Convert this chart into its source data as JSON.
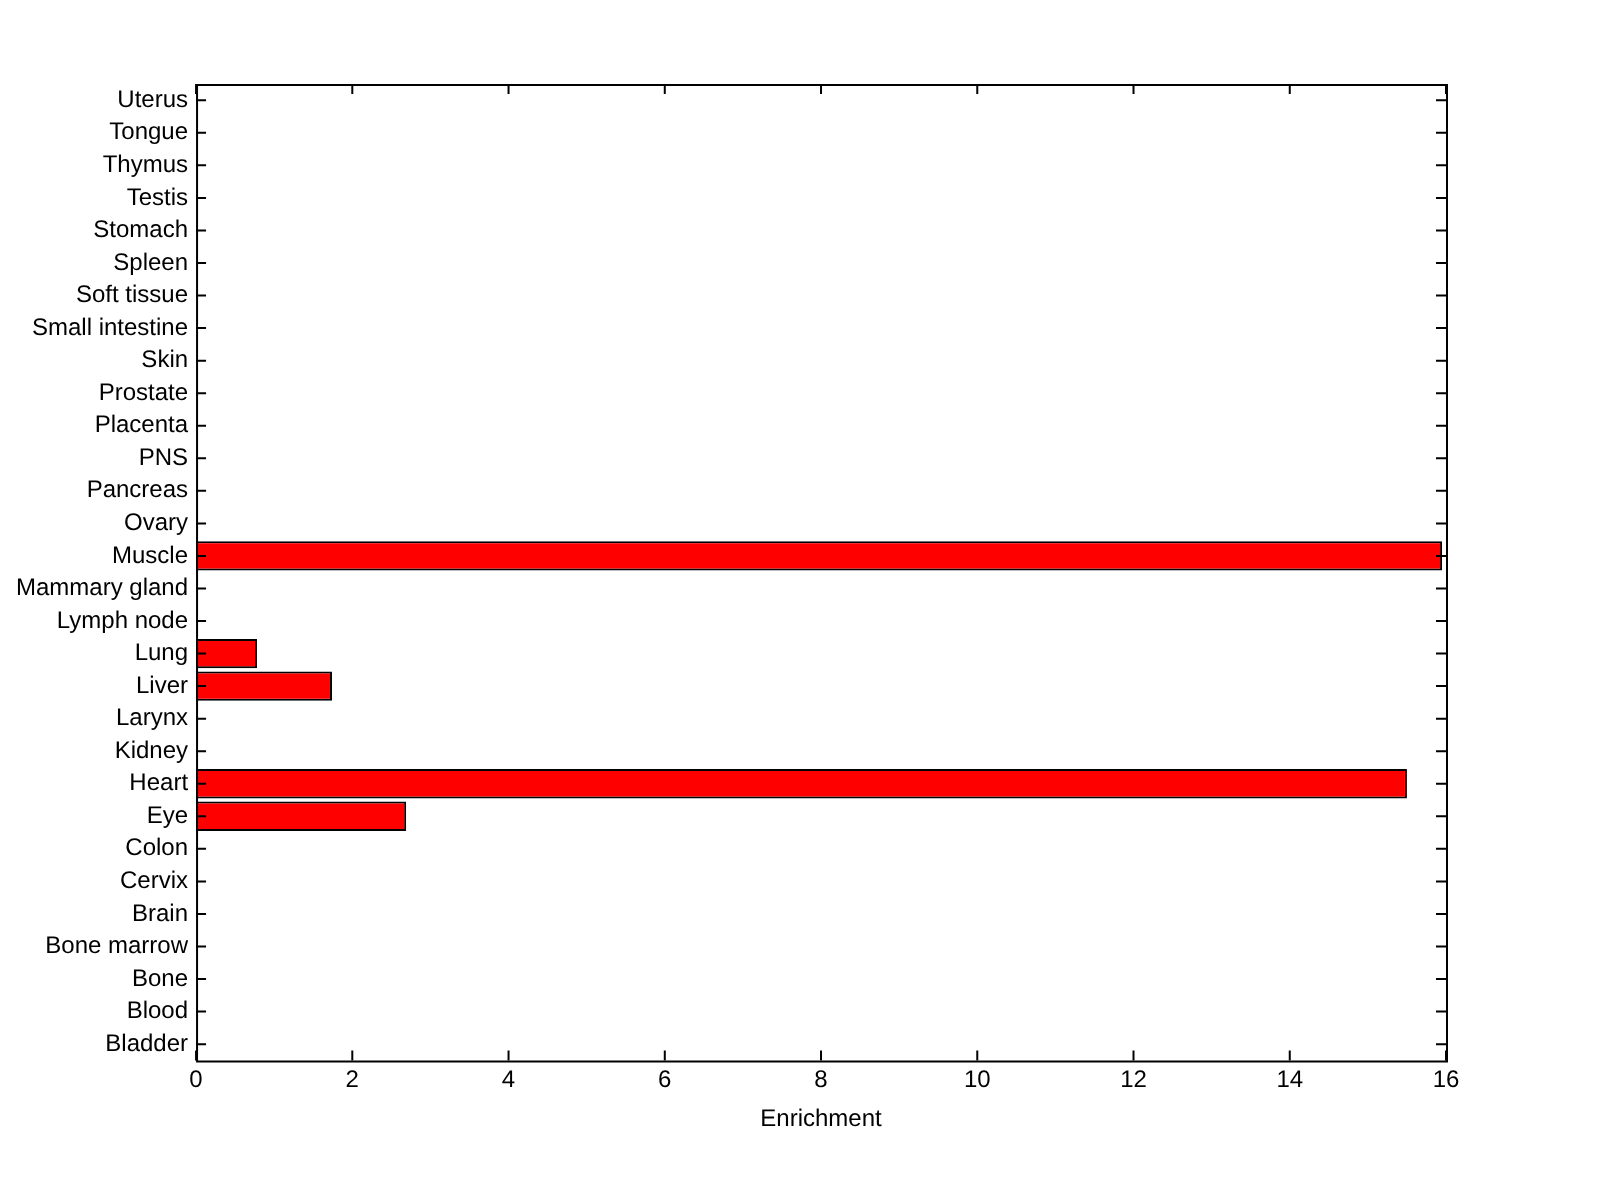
{
  "chart_data": {
    "type": "bar",
    "orientation": "horizontal",
    "xlabel": "Enrichment",
    "categories": [
      "Uterus",
      "Tongue",
      "Thymus",
      "Testis",
      "Stomach",
      "Spleen",
      "Soft tissue",
      "Small intestine",
      "Skin",
      "Prostate",
      "Placenta",
      "PNS",
      "Pancreas",
      "Ovary",
      "Muscle",
      "Mammary gland",
      "Lymph node",
      "Lung",
      "Liver",
      "Larynx",
      "Kidney",
      "Heart",
      "Eye",
      "Colon",
      "Cervix",
      "Brain",
      "Bone marrow",
      "Bone",
      "Blood",
      "Bladder"
    ],
    "values": [
      0,
      0,
      0,
      0,
      0,
      0,
      0,
      0,
      0,
      0,
      0,
      0,
      0,
      0,
      15.95,
      0,
      0,
      0.78,
      1.74,
      0,
      0,
      15.5,
      2.69,
      0,
      0,
      0,
      0,
      0,
      0,
      0
    ],
    "color": "#ff0000",
    "xlim": [
      0,
      16
    ],
    "xticks": [
      0,
      2,
      4,
      6,
      8,
      10,
      12,
      14,
      16
    ],
    "grid": false,
    "legend": false
  }
}
